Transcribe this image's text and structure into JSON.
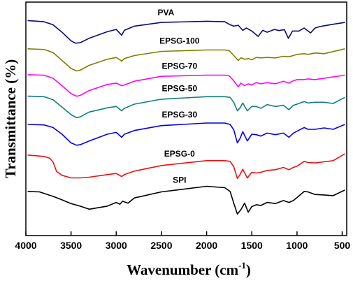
{
  "chart_data": {
    "type": "line",
    "xlabel": "Wavenumber (cm",
    "xlabel_sup": "-1",
    "xlabel_close": ")",
    "ylabel": "Transmittance (%)",
    "xlim": [
      4000,
      450
    ],
    "x_reversed": true,
    "xticks": [
      {
        "value": 4000,
        "label": "4000"
      },
      {
        "value": 3500,
        "label": "3500"
      },
      {
        "value": 3000,
        "label": "3000"
      },
      {
        "value": 2500,
        "label": "2500"
      },
      {
        "value": 2000,
        "label": "2000"
      },
      {
        "value": 1500,
        "label": "1500"
      },
      {
        "value": 1000,
        "label": "1000"
      },
      {
        "value": 500,
        "label": "500"
      }
    ],
    "y_units": "relative transmittance (curves stacked with vertical offsets, 0 = bottom, 100 = top of plot)",
    "ylim": [
      0,
      100
    ],
    "grid": false,
    "series": [
      {
        "name": "PVA",
        "label_x": 2450,
        "color": "#0a0a7a",
        "points": [
          [
            3980,
            92.1
          ],
          [
            3800,
            91.6
          ],
          [
            3700,
            90.3
          ],
          [
            3600,
            87.1
          ],
          [
            3500,
            83.4
          ],
          [
            3450,
            82.4
          ],
          [
            3400,
            82.6
          ],
          [
            3300,
            84.5
          ],
          [
            3100,
            87.3
          ],
          [
            3000,
            88.3
          ],
          [
            2940,
            85.8
          ],
          [
            2910,
            87.9
          ],
          [
            2800,
            89.7
          ],
          [
            2500,
            91.3
          ],
          [
            2000,
            91.8
          ],
          [
            1800,
            91.6
          ],
          [
            1740,
            90.3
          ],
          [
            1700,
            89.7
          ],
          [
            1650,
            90.1
          ],
          [
            1600,
            87.9
          ],
          [
            1560,
            88.9
          ],
          [
            1500,
            87.6
          ],
          [
            1430,
            85.3
          ],
          [
            1380,
            87.9
          ],
          [
            1330,
            87.1
          ],
          [
            1250,
            88.3
          ],
          [
            1200,
            87.8
          ],
          [
            1140,
            88.2
          ],
          [
            1095,
            84.5
          ],
          [
            1050,
            87.6
          ],
          [
            980,
            87.6
          ],
          [
            920,
            88.9
          ],
          [
            850,
            86.8
          ],
          [
            800,
            88.9
          ],
          [
            750,
            89.5
          ],
          [
            600,
            90.5
          ],
          [
            470,
            91.3
          ]
        ]
      },
      {
        "name": "EPSG-100",
        "label_x": 2300,
        "color": "#7f7f00",
        "points": [
          [
            3980,
            80.0
          ],
          [
            3800,
            79.7
          ],
          [
            3700,
            78.4
          ],
          [
            3600,
            75.0
          ],
          [
            3500,
            71.6
          ],
          [
            3440,
            70.5
          ],
          [
            3400,
            70.8
          ],
          [
            3300,
            72.9
          ],
          [
            3100,
            75.5
          ],
          [
            3000,
            76.3
          ],
          [
            2940,
            74.7
          ],
          [
            2910,
            75.8
          ],
          [
            2800,
            77.1
          ],
          [
            2500,
            78.9
          ],
          [
            2000,
            79.5
          ],
          [
            1800,
            79.5
          ],
          [
            1750,
            79.2
          ],
          [
            1700,
            77.1
          ],
          [
            1650,
            75.0
          ],
          [
            1620,
            76.1
          ],
          [
            1580,
            75.5
          ],
          [
            1540,
            75.8
          ],
          [
            1500,
            75.3
          ],
          [
            1450,
            76.3
          ],
          [
            1400,
            76.1
          ],
          [
            1330,
            76.3
          ],
          [
            1240,
            76.1
          ],
          [
            1150,
            76.8
          ],
          [
            1090,
            76.6
          ],
          [
            1040,
            77.1
          ],
          [
            1000,
            77.6
          ],
          [
            920,
            77.9
          ],
          [
            880,
            77.6
          ],
          [
            800,
            78.2
          ],
          [
            700,
            77.9
          ],
          [
            470,
            80.0
          ]
        ]
      },
      {
        "name": "EPSG-70",
        "label_x": 2300,
        "color": "#ff00ff",
        "points": [
          [
            3980,
            68.9
          ],
          [
            3800,
            68.7
          ],
          [
            3700,
            67.4
          ],
          [
            3600,
            64.2
          ],
          [
            3500,
            60.8
          ],
          [
            3440,
            59.7
          ],
          [
            3400,
            60.0
          ],
          [
            3300,
            62.1
          ],
          [
            3100,
            64.7
          ],
          [
            3000,
            65.3
          ],
          [
            2940,
            64.2
          ],
          [
            2910,
            64.5
          ],
          [
            2800,
            66.1
          ],
          [
            2500,
            68.2
          ],
          [
            2000,
            68.7
          ],
          [
            1800,
            68.7
          ],
          [
            1750,
            68.4
          ],
          [
            1700,
            66.3
          ],
          [
            1650,
            63.7
          ],
          [
            1620,
            65.3
          ],
          [
            1580,
            64.2
          ],
          [
            1540,
            65.0
          ],
          [
            1500,
            64.5
          ],
          [
            1450,
            65.5
          ],
          [
            1400,
            65.0
          ],
          [
            1330,
            65.5
          ],
          [
            1240,
            65.0
          ],
          [
            1150,
            66.1
          ],
          [
            1090,
            65.3
          ],
          [
            1040,
            66.3
          ],
          [
            1000,
            66.8
          ],
          [
            920,
            66.8
          ],
          [
            880,
            67.1
          ],
          [
            800,
            66.8
          ],
          [
            700,
            67.4
          ],
          [
            470,
            68.7
          ]
        ]
      },
      {
        "name": "EPSG-50",
        "label_x": 2300,
        "color": "#0f7f7f",
        "points": [
          [
            3980,
            59.7
          ],
          [
            3800,
            59.5
          ],
          [
            3700,
            58.2
          ],
          [
            3600,
            55.0
          ],
          [
            3500,
            51.8
          ],
          [
            3440,
            50.5
          ],
          [
            3400,
            50.8
          ],
          [
            3300,
            52.9
          ],
          [
            3100,
            54.7
          ],
          [
            3000,
            55.3
          ],
          [
            2940,
            53.4
          ],
          [
            2910,
            54.5
          ],
          [
            2800,
            56.3
          ],
          [
            2500,
            58.4
          ],
          [
            2000,
            59.5
          ],
          [
            1800,
            59.5
          ],
          [
            1740,
            59.2
          ],
          [
            1700,
            57.1
          ],
          [
            1660,
            53.4
          ],
          [
            1630,
            54.7
          ],
          [
            1600,
            56.8
          ],
          [
            1550,
            53.4
          ],
          [
            1500,
            55.3
          ],
          [
            1450,
            55.3
          ],
          [
            1400,
            54.5
          ],
          [
            1330,
            56.1
          ],
          [
            1240,
            55.3
          ],
          [
            1150,
            55.8
          ],
          [
            1090,
            53.9
          ],
          [
            1040,
            55.8
          ],
          [
            1000,
            56.3
          ],
          [
            920,
            57.4
          ],
          [
            880,
            56.8
          ],
          [
            800,
            57.1
          ],
          [
            700,
            57.1
          ],
          [
            600,
            56.6
          ],
          [
            470,
            59.2
          ]
        ]
      },
      {
        "name": "EPSG-30",
        "label_x": 2300,
        "color": "#0000ee",
        "points": [
          [
            3980,
            47.6
          ],
          [
            3800,
            47.4
          ],
          [
            3700,
            46.3
          ],
          [
            3600,
            43.4
          ],
          [
            3500,
            39.7
          ],
          [
            3440,
            38.7
          ],
          [
            3400,
            38.9
          ],
          [
            3300,
            40.5
          ],
          [
            3100,
            43.4
          ],
          [
            3000,
            44.2
          ],
          [
            2940,
            42.1
          ],
          [
            2910,
            43.4
          ],
          [
            2800,
            45.0
          ],
          [
            2500,
            47.1
          ],
          [
            2000,
            48.2
          ],
          [
            1800,
            48.2
          ],
          [
            1740,
            47.6
          ],
          [
            1700,
            45.3
          ],
          [
            1660,
            39.7
          ],
          [
            1630,
            41.6
          ],
          [
            1600,
            44.5
          ],
          [
            1550,
            40.5
          ],
          [
            1500,
            43.4
          ],
          [
            1450,
            43.2
          ],
          [
            1400,
            42.6
          ],
          [
            1330,
            43.9
          ],
          [
            1240,
            43.2
          ],
          [
            1150,
            43.9
          ],
          [
            1090,
            42.1
          ],
          [
            1040,
            43.9
          ],
          [
            1000,
            44.7
          ],
          [
            920,
            46.3
          ],
          [
            880,
            45.5
          ],
          [
            800,
            45.5
          ],
          [
            700,
            46.1
          ],
          [
            600,
            45.5
          ],
          [
            470,
            47.6
          ]
        ]
      },
      {
        "name": "EPSG-0",
        "label_x": 2300,
        "color": "#ee1111",
        "points": [
          [
            3980,
            34.5
          ],
          [
            3800,
            33.9
          ],
          [
            3740,
            33.2
          ],
          [
            3700,
            31.6
          ],
          [
            3660,
            27.4
          ],
          [
            3600,
            25.8
          ],
          [
            3500,
            24.7
          ],
          [
            3400,
            24.7
          ],
          [
            3300,
            25.0
          ],
          [
            3100,
            26.1
          ],
          [
            3000,
            26.6
          ],
          [
            2940,
            25.3
          ],
          [
            2910,
            26.1
          ],
          [
            2800,
            27.6
          ],
          [
            2500,
            30.0
          ],
          [
            2000,
            32.1
          ],
          [
            1800,
            32.1
          ],
          [
            1740,
            31.8
          ],
          [
            1700,
            29.5
          ],
          [
            1660,
            24.5
          ],
          [
            1630,
            26.1
          ],
          [
            1600,
            28.4
          ],
          [
            1550,
            24.7
          ],
          [
            1500,
            27.1
          ],
          [
            1450,
            26.8
          ],
          [
            1400,
            27.1
          ],
          [
            1330,
            27.9
          ],
          [
            1240,
            28.2
          ],
          [
            1150,
            29.2
          ],
          [
            1090,
            28.2
          ],
          [
            1040,
            29.2
          ],
          [
            1000,
            29.7
          ],
          [
            920,
            31.8
          ],
          [
            880,
            31.3
          ],
          [
            800,
            31.1
          ],
          [
            700,
            31.6
          ],
          [
            600,
            32.1
          ],
          [
            470,
            35.0
          ]
        ]
      },
      {
        "name": "SPI",
        "label_x": 2300,
        "color": "#000000",
        "points": [
          [
            3980,
            18.9
          ],
          [
            3850,
            18.7
          ],
          [
            3700,
            16.8
          ],
          [
            3600,
            15.3
          ],
          [
            3500,
            13.7
          ],
          [
            3400,
            12.6
          ],
          [
            3300,
            11.3
          ],
          [
            3100,
            12.6
          ],
          [
            3000,
            14.2
          ],
          [
            2960,
            13.4
          ],
          [
            2930,
            14.7
          ],
          [
            2870,
            13.9
          ],
          [
            2800,
            16.1
          ],
          [
            2500,
            18.7
          ],
          [
            2000,
            21.1
          ],
          [
            1800,
            20.5
          ],
          [
            1740,
            18.9
          ],
          [
            1700,
            13.9
          ],
          [
            1660,
            9.2
          ],
          [
            1620,
            11.1
          ],
          [
            1580,
            13.9
          ],
          [
            1540,
            10.0
          ],
          [
            1500,
            12.4
          ],
          [
            1450,
            13.2
          ],
          [
            1400,
            12.9
          ],
          [
            1330,
            14.2
          ],
          [
            1240,
            13.7
          ],
          [
            1150,
            15.0
          ],
          [
            1090,
            14.2
          ],
          [
            1040,
            15.0
          ],
          [
            1000,
            16.3
          ],
          [
            920,
            18.9
          ],
          [
            880,
            18.7
          ],
          [
            800,
            17.6
          ],
          [
            700,
            17.4
          ],
          [
            600,
            17.1
          ],
          [
            470,
            19.5
          ]
        ]
      }
    ]
  }
}
